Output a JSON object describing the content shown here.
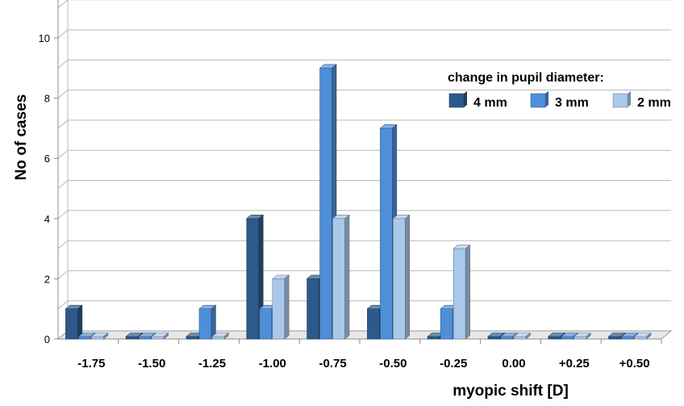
{
  "chart_data": {
    "type": "bar",
    "title": "",
    "xlabel": "myopic shift [D]",
    "ylabel": "No of cases",
    "ylim": [
      0,
      11
    ],
    "yticks": [
      0,
      2,
      4,
      6,
      8,
      10
    ],
    "grid": true,
    "style": "3d-clustered-columns",
    "categories": [
      "-1.75",
      "-1.50",
      "-1.25",
      "-1.00",
      "-0.75",
      "-0.50",
      "-0.25",
      "0.00",
      "+0.25",
      "+0.50"
    ],
    "legend": {
      "title": "change in pupil diameter:",
      "position": "top-right"
    },
    "series": [
      {
        "name": "4 mm",
        "color": "#2d5a8a",
        "values": [
          1,
          0,
          0,
          4,
          2,
          1,
          0,
          0,
          0,
          0
        ]
      },
      {
        "name": "3 mm",
        "color": "#4f8fd8",
        "values": [
          0,
          0,
          1,
          1,
          9,
          7,
          1,
          0,
          0,
          0
        ]
      },
      {
        "name": "2 mm",
        "color": "#aac8ea",
        "values": [
          0,
          0,
          0,
          2,
          4,
          4,
          3,
          0,
          0,
          0
        ]
      }
    ]
  }
}
